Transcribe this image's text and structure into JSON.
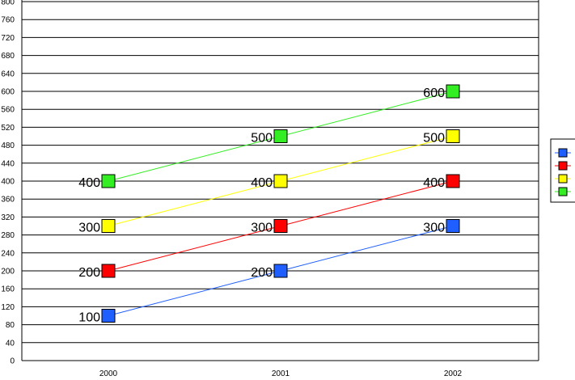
{
  "chart_data": {
    "type": "line",
    "categories": [
      "2000",
      "2001",
      "2002"
    ],
    "ylim": [
      0,
      800
    ],
    "yticks": [
      0,
      40,
      80,
      120,
      160,
      200,
      240,
      280,
      320,
      360,
      400,
      440,
      480,
      520,
      560,
      600,
      640,
      680,
      720,
      760,
      800
    ],
    "grid": true,
    "legend_position": "right",
    "series": [
      {
        "values": [
          100,
          200,
          300
        ],
        "color": "#1f5fff"
      },
      {
        "values": [
          200,
          300,
          400
        ],
        "color": "#ff0000"
      },
      {
        "values": [
          300,
          400,
          500
        ],
        "color": "#ffff00"
      },
      {
        "values": [
          400,
          500,
          600
        ],
        "color": "#33ee22"
      }
    ],
    "data_labels": [
      [
        "100",
        "200",
        "300"
      ],
      [
        "200",
        "300",
        "400"
      ],
      [
        "300",
        "400",
        "500"
      ],
      [
        "400",
        "500",
        "600"
      ]
    ],
    "legend": [
      {
        "label": "",
        "color": "#1f5fff"
      },
      {
        "label": "",
        "color": "#ff0000"
      },
      {
        "label": "",
        "color": "#ffff00"
      },
      {
        "label": "",
        "color": "#33ee22"
      }
    ]
  }
}
